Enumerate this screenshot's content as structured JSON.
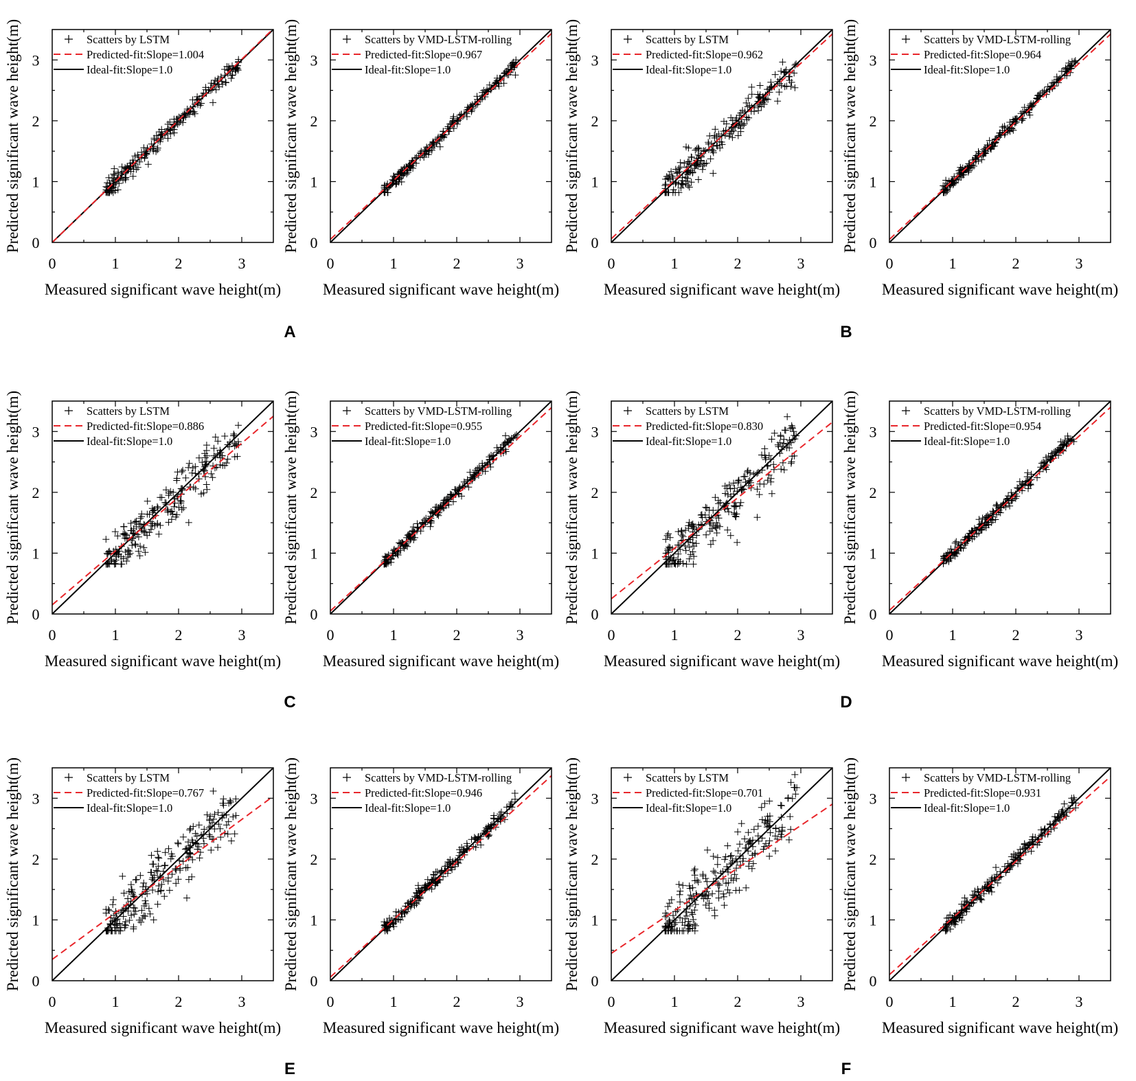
{
  "colors": {
    "ideal": "#000000",
    "fit": "#e8262b",
    "marker": "#000000",
    "axes": "#000000"
  },
  "panel_labels": [
    {
      "id": "A",
      "label": "A"
    },
    {
      "id": "B",
      "label": "B"
    },
    {
      "id": "C",
      "label": "C"
    },
    {
      "id": "D",
      "label": "D"
    },
    {
      "id": "E",
      "label": "E"
    },
    {
      "id": "F",
      "label": "F"
    }
  ],
  "chart_data": [
    {
      "panel": "A",
      "type": "scatter",
      "xlabel": "Measured significant wave height(m)",
      "ylabel": "Predicted significant wave height(m)",
      "xlim": [
        0,
        3.5
      ],
      "ylim": [
        0,
        3.5
      ],
      "xticks": [
        0,
        1,
        2,
        3
      ],
      "yticks": [
        0,
        1,
        2,
        3
      ],
      "legend_position": "top-left",
      "series": [
        {
          "name": "Scatters by LSTM",
          "kind": "scatter",
          "x_range": [
            0.85,
            2.95
          ],
          "spread": 0.07
        },
        {
          "name": "Predicted-fit:Slope=1.004",
          "kind": "fit",
          "slope": 1.004,
          "intercept": 0.0
        },
        {
          "name": "Ideal-fit:Slope=1.0",
          "kind": "ideal",
          "slope": 1.0,
          "intercept": 0.0
        }
      ]
    },
    {
      "panel": "A",
      "type": "scatter",
      "xlabel": "Measured significant wave height(m)",
      "ylabel": "Predicted significant wave height(m)",
      "xlim": [
        0,
        3.5
      ],
      "ylim": [
        0,
        3.5
      ],
      "xticks": [
        0,
        1,
        2,
        3
      ],
      "yticks": [
        0,
        1,
        2,
        3
      ],
      "legend_position": "top-left",
      "series": [
        {
          "name": "Scatters by VMD-LSTM-rolling",
          "kind": "scatter",
          "x_range": [
            0.85,
            2.95
          ],
          "spread": 0.05
        },
        {
          "name": "Predicted-fit:Slope=0.967",
          "kind": "fit",
          "slope": 0.967,
          "intercept": 0.05
        },
        {
          "name": "Ideal-fit:Slope=1.0",
          "kind": "ideal",
          "slope": 1.0,
          "intercept": 0.0
        }
      ]
    },
    {
      "panel": "B",
      "type": "scatter",
      "xlabel": "Measured significant wave height(m)",
      "ylabel": "Predicted significant wave height(m)",
      "xlim": [
        0,
        3.5
      ],
      "ylim": [
        0,
        3.5
      ],
      "xticks": [
        0,
        1,
        2,
        3
      ],
      "yticks": [
        0,
        1,
        2,
        3
      ],
      "legend_position": "top-left",
      "series": [
        {
          "name": "Scatters by LSTM",
          "kind": "scatter",
          "x_range": [
            0.85,
            2.95
          ],
          "spread": 0.13
        },
        {
          "name": "Predicted-fit:Slope=0.962",
          "kind": "fit",
          "slope": 0.962,
          "intercept": 0.06
        },
        {
          "name": "Ideal-fit:Slope=1.0",
          "kind": "ideal",
          "slope": 1.0,
          "intercept": 0.0
        }
      ]
    },
    {
      "panel": "B",
      "type": "scatter",
      "xlabel": "Measured significant wave height(m)",
      "ylabel": "Predicted significant wave height(m)",
      "xlim": [
        0,
        3.5
      ],
      "ylim": [
        0,
        3.5
      ],
      "xticks": [
        0,
        1,
        2,
        3
      ],
      "yticks": [
        0,
        1,
        2,
        3
      ],
      "legend_position": "top-left",
      "series": [
        {
          "name": "Scatters by VMD-LSTM-rolling",
          "kind": "scatter",
          "x_range": [
            0.85,
            2.95
          ],
          "spread": 0.05
        },
        {
          "name": "Predicted-fit:Slope=0.964",
          "kind": "fit",
          "slope": 0.964,
          "intercept": 0.05
        },
        {
          "name": "Ideal-fit:Slope=1.0",
          "kind": "ideal",
          "slope": 1.0,
          "intercept": 0.0
        }
      ]
    },
    {
      "panel": "C",
      "type": "scatter",
      "xlabel": "Measured significant wave height(m)",
      "ylabel": "Predicted significant wave height(m)",
      "xlim": [
        0,
        3.5
      ],
      "ylim": [
        0,
        3.5
      ],
      "xticks": [
        0,
        1,
        2,
        3
      ],
      "yticks": [
        0,
        1,
        2,
        3
      ],
      "legend_position": "top-left",
      "series": [
        {
          "name": "Scatters by LSTM",
          "kind": "scatter",
          "x_range": [
            0.85,
            2.95
          ],
          "spread": 0.16
        },
        {
          "name": "Predicted-fit:Slope=0.886",
          "kind": "fit",
          "slope": 0.886,
          "intercept": 0.15
        },
        {
          "name": "Ideal-fit:Slope=1.0",
          "kind": "ideal",
          "slope": 1.0,
          "intercept": 0.0
        }
      ]
    },
    {
      "panel": "C",
      "type": "scatter",
      "xlabel": "Measured significant wave height(m)",
      "ylabel": "Predicted significant wave height(m)",
      "xlim": [
        0,
        3.5
      ],
      "ylim": [
        0,
        3.5
      ],
      "xticks": [
        0,
        1,
        2,
        3
      ],
      "yticks": [
        0,
        1,
        2,
        3
      ],
      "legend_position": "top-left",
      "series": [
        {
          "name": "Scatters by VMD-LSTM-rolling",
          "kind": "scatter",
          "x_range": [
            0.85,
            2.95
          ],
          "spread": 0.05
        },
        {
          "name": "Predicted-fit:Slope=0.955",
          "kind": "fit",
          "slope": 0.955,
          "intercept": 0.05
        },
        {
          "name": "Ideal-fit:Slope=1.0",
          "kind": "ideal",
          "slope": 1.0,
          "intercept": 0.0
        }
      ]
    },
    {
      "panel": "D",
      "type": "scatter",
      "xlabel": "Measured significant wave height(m)",
      "ylabel": "Predicted significant wave height(m)",
      "xlim": [
        0,
        3.5
      ],
      "ylim": [
        0,
        3.5
      ],
      "xticks": [
        0,
        1,
        2,
        3
      ],
      "yticks": [
        0,
        1,
        2,
        3
      ],
      "legend_position": "top-left",
      "series": [
        {
          "name": "Scatters by LSTM",
          "kind": "scatter",
          "x_range": [
            0.85,
            2.95
          ],
          "spread": 0.2
        },
        {
          "name": "Predicted-fit:Slope=0.830",
          "kind": "fit",
          "slope": 0.83,
          "intercept": 0.25
        },
        {
          "name": "Ideal-fit:Slope=1.0",
          "kind": "ideal",
          "slope": 1.0,
          "intercept": 0.0
        }
      ]
    },
    {
      "panel": "D",
      "type": "scatter",
      "xlabel": "Measured significant wave height(m)",
      "ylabel": "Predicted significant wave height(m)",
      "xlim": [
        0,
        3.5
      ],
      "ylim": [
        0,
        3.5
      ],
      "xticks": [
        0,
        1,
        2,
        3
      ],
      "yticks": [
        0,
        1,
        2,
        3
      ],
      "legend_position": "top-left",
      "series": [
        {
          "name": "Scatters by VMD-LSTM-rolling",
          "kind": "scatter",
          "x_range": [
            0.85,
            2.95
          ],
          "spread": 0.06
        },
        {
          "name": "Predicted-fit:Slope=0.954",
          "kind": "fit",
          "slope": 0.954,
          "intercept": 0.06
        },
        {
          "name": "Ideal-fit:Slope=1.0",
          "kind": "ideal",
          "slope": 1.0,
          "intercept": 0.0
        }
      ]
    },
    {
      "panel": "E",
      "type": "scatter",
      "xlabel": "Measured significant wave height(m)",
      "ylabel": "Predicted significant wave height(m)",
      "xlim": [
        0,
        3.5
      ],
      "ylim": [
        0,
        3.5
      ],
      "xticks": [
        0,
        1,
        2,
        3
      ],
      "yticks": [
        0,
        1,
        2,
        3
      ],
      "legend_position": "top-left",
      "series": [
        {
          "name": "Scatters by LSTM",
          "kind": "scatter",
          "x_range": [
            0.85,
            2.95
          ],
          "spread": 0.22
        },
        {
          "name": "Predicted-fit:Slope=0.767",
          "kind": "fit",
          "slope": 0.767,
          "intercept": 0.35
        },
        {
          "name": "Ideal-fit:Slope=1.0",
          "kind": "ideal",
          "slope": 1.0,
          "intercept": 0.0
        }
      ]
    },
    {
      "panel": "E",
      "type": "scatter",
      "xlabel": "Measured significant wave height(m)",
      "ylabel": "Predicted significant wave height(m)",
      "xlim": [
        0,
        3.5
      ],
      "ylim": [
        0,
        3.5
      ],
      "xticks": [
        0,
        1,
        2,
        3
      ],
      "yticks": [
        0,
        1,
        2,
        3
      ],
      "legend_position": "top-left",
      "series": [
        {
          "name": "Scatters by VMD-LSTM-rolling",
          "kind": "scatter",
          "x_range": [
            0.85,
            2.95
          ],
          "spread": 0.06
        },
        {
          "name": "Predicted-fit:Slope=0.946",
          "kind": "fit",
          "slope": 0.946,
          "intercept": 0.06
        },
        {
          "name": "Ideal-fit:Slope=1.0",
          "kind": "ideal",
          "slope": 1.0,
          "intercept": 0.0
        }
      ]
    },
    {
      "panel": "F",
      "type": "scatter",
      "xlabel": "Measured significant wave height(m)",
      "ylabel": "Predicted significant wave height(m)",
      "xlim": [
        0,
        3.5
      ],
      "ylim": [
        0,
        3.5
      ],
      "xticks": [
        0,
        1,
        2,
        3
      ],
      "yticks": [
        0,
        1,
        2,
        3
      ],
      "legend_position": "top-left",
      "series": [
        {
          "name": "Scatters by LSTM",
          "kind": "scatter",
          "x_range": [
            0.85,
            2.95
          ],
          "spread": 0.24
        },
        {
          "name": "Predicted-fit:Slope=0.701",
          "kind": "fit",
          "slope": 0.701,
          "intercept": 0.45
        },
        {
          "name": "Ideal-fit:Slope=1.0",
          "kind": "ideal",
          "slope": 1.0,
          "intercept": 0.0
        }
      ]
    },
    {
      "panel": "F",
      "type": "scatter",
      "xlabel": "Measured significant wave height(m)",
      "ylabel": "Predicted significant wave height(m)",
      "xlim": [
        0,
        3.5
      ],
      "ylim": [
        0,
        3.5
      ],
      "xticks": [
        0,
        1,
        2,
        3
      ],
      "yticks": [
        0,
        1,
        2,
        3
      ],
      "legend_position": "top-left",
      "series": [
        {
          "name": "Scatters by VMD-LSTM-rolling",
          "kind": "scatter",
          "x_range": [
            0.85,
            2.95
          ],
          "spread": 0.06
        },
        {
          "name": "Predicted-fit:Slope=0.931",
          "kind": "fit",
          "slope": 0.931,
          "intercept": 0.1
        },
        {
          "name": "Ideal-fit:Slope=1.0",
          "kind": "ideal",
          "slope": 1.0,
          "intercept": 0.0
        }
      ]
    }
  ]
}
